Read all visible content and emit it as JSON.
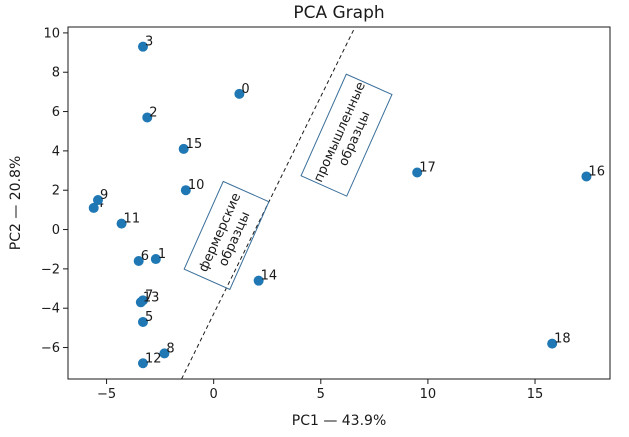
{
  "chart_data": {
    "type": "scatter",
    "title": "PCA Graph",
    "xlabel": "PC1 — 43.9%",
    "ylabel": "PC2 — 20.8%",
    "xlim": [
      -6.8,
      18.5
    ],
    "ylim": [
      -7.6,
      10.3
    ],
    "xticks": [
      -5,
      0,
      5,
      10,
      15
    ],
    "yticks": [
      -6,
      -4,
      -2,
      0,
      2,
      4,
      6,
      8,
      10
    ],
    "xtick_labels": [
      "−5",
      "0",
      "5",
      "10",
      "15"
    ],
    "ytick_labels": [
      "−6",
      "−4",
      "−2",
      "0",
      "2",
      "4",
      "6",
      "8",
      "10"
    ],
    "marker_color": "#1f77b4",
    "points": [
      {
        "label": "0",
        "x": 1.2,
        "y": 6.9
      },
      {
        "label": "1",
        "x": -2.7,
        "y": -1.5
      },
      {
        "label": "2",
        "x": -3.1,
        "y": 5.7
      },
      {
        "label": "3",
        "x": -3.3,
        "y": 9.3
      },
      {
        "label": "4",
        "x": -5.6,
        "y": 1.1
      },
      {
        "label": "5",
        "x": -3.3,
        "y": -4.7
      },
      {
        "label": "6",
        "x": -3.5,
        "y": -1.6
      },
      {
        "label": "7",
        "x": -3.3,
        "y": -3.6
      },
      {
        "label": "8",
        "x": -2.3,
        "y": -6.3
      },
      {
        "label": "9",
        "x": -5.4,
        "y": 1.5
      },
      {
        "label": "10",
        "x": -1.3,
        "y": 2.0
      },
      {
        "label": "11",
        "x": -4.3,
        "y": 0.3
      },
      {
        "label": "12",
        "x": -3.3,
        "y": -6.8
      },
      {
        "label": "13",
        "x": -3.4,
        "y": -3.7
      },
      {
        "label": "14",
        "x": 2.1,
        "y": -2.6
      },
      {
        "label": "15",
        "x": -1.4,
        "y": 4.1
      },
      {
        "label": "16",
        "x": 17.4,
        "y": 2.7
      },
      {
        "label": "17",
        "x": 9.5,
        "y": 2.9
      },
      {
        "label": "18",
        "x": 15.8,
        "y": -5.8
      }
    ],
    "divider_line": {
      "x": [
        -1.5,
        6.6
      ],
      "y": [
        -7.6,
        10.3
      ],
      "style": "dashed"
    },
    "annotations": [
      {
        "text": "фермерские\nобразцы",
        "x": 0.6,
        "y": -0.3,
        "rotation": -66
      },
      {
        "text": "промышленные\nобразцы",
        "x": 6.2,
        "y": 4.8,
        "rotation": -66
      }
    ]
  }
}
